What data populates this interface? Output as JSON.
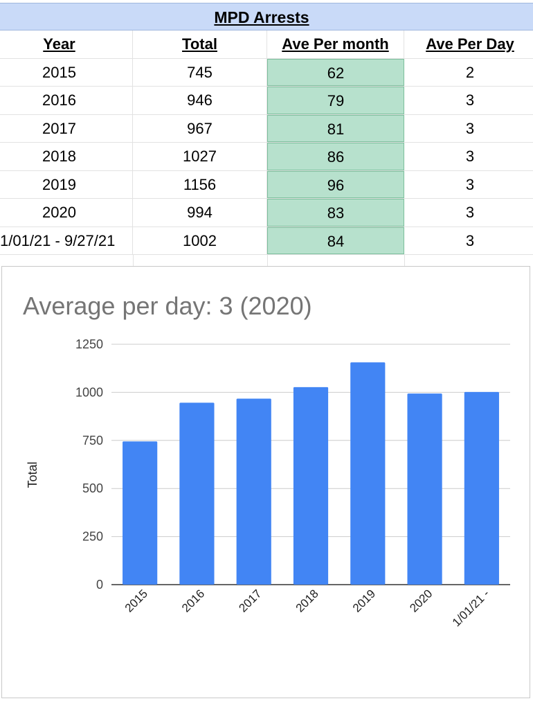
{
  "table": {
    "title": "MPD Arrests",
    "headers": [
      "Year",
      "Total",
      "Ave Per month",
      "Ave Per Day"
    ],
    "rows": [
      [
        "2015",
        "745",
        "62",
        "2"
      ],
      [
        "2016",
        "946",
        "79",
        "3"
      ],
      [
        "2017",
        "967",
        "81",
        "3"
      ],
      [
        "2018",
        "1027",
        "86",
        "3"
      ],
      [
        "2019",
        "1156",
        "96",
        "3"
      ],
      [
        "2020",
        "994",
        "83",
        "3"
      ],
      [
        "1/01/21 - 9/27/21",
        "1002",
        "84",
        "3"
      ]
    ],
    "highlight_color": "#b7e1cd"
  },
  "chart_data": {
    "type": "bar",
    "title": "Average per day: 3 (2020)",
    "xlabel": "",
    "ylabel": "Total",
    "categories": [
      "2015",
      "2016",
      "2017",
      "2018",
      "2019",
      "2020",
      "1/01/21 -"
    ],
    "values": [
      745,
      946,
      967,
      1027,
      1156,
      994,
      1002
    ],
    "ylim": [
      0,
      1250
    ],
    "yticks": [
      0,
      250,
      500,
      750,
      1000,
      1250
    ],
    "grid": true,
    "legend": "none",
    "bar_color": "#4285f4"
  }
}
